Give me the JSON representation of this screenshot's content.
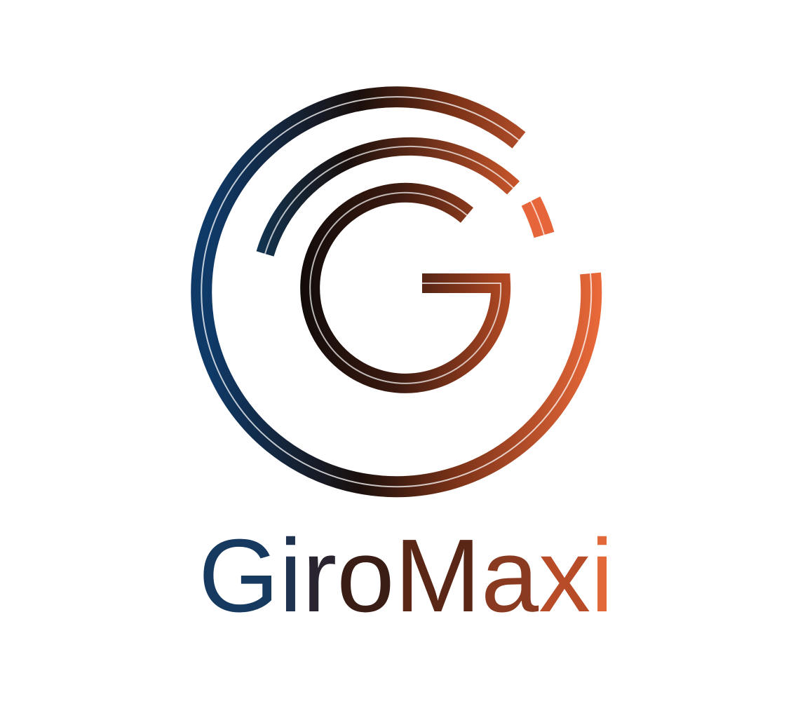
{
  "brand": {
    "name": "GiroMaxi",
    "letters": [
      "G",
      "i",
      "r",
      "o",
      "M",
      "a",
      "x",
      "i"
    ],
    "letter_colors": [
      "#163a5f",
      "#1f3350",
      "#2a2430",
      "#3a1e16",
      "#5a2616",
      "#8a3a20",
      "#b84c28",
      "#e2683a"
    ],
    "gradient": {
      "start": "#0f3a68",
      "mid": "#1a0f0c",
      "end": "#ec6a3a"
    }
  },
  "logo_mark": {
    "icon": "concentric-g-rings-icon",
    "rings": 3
  }
}
